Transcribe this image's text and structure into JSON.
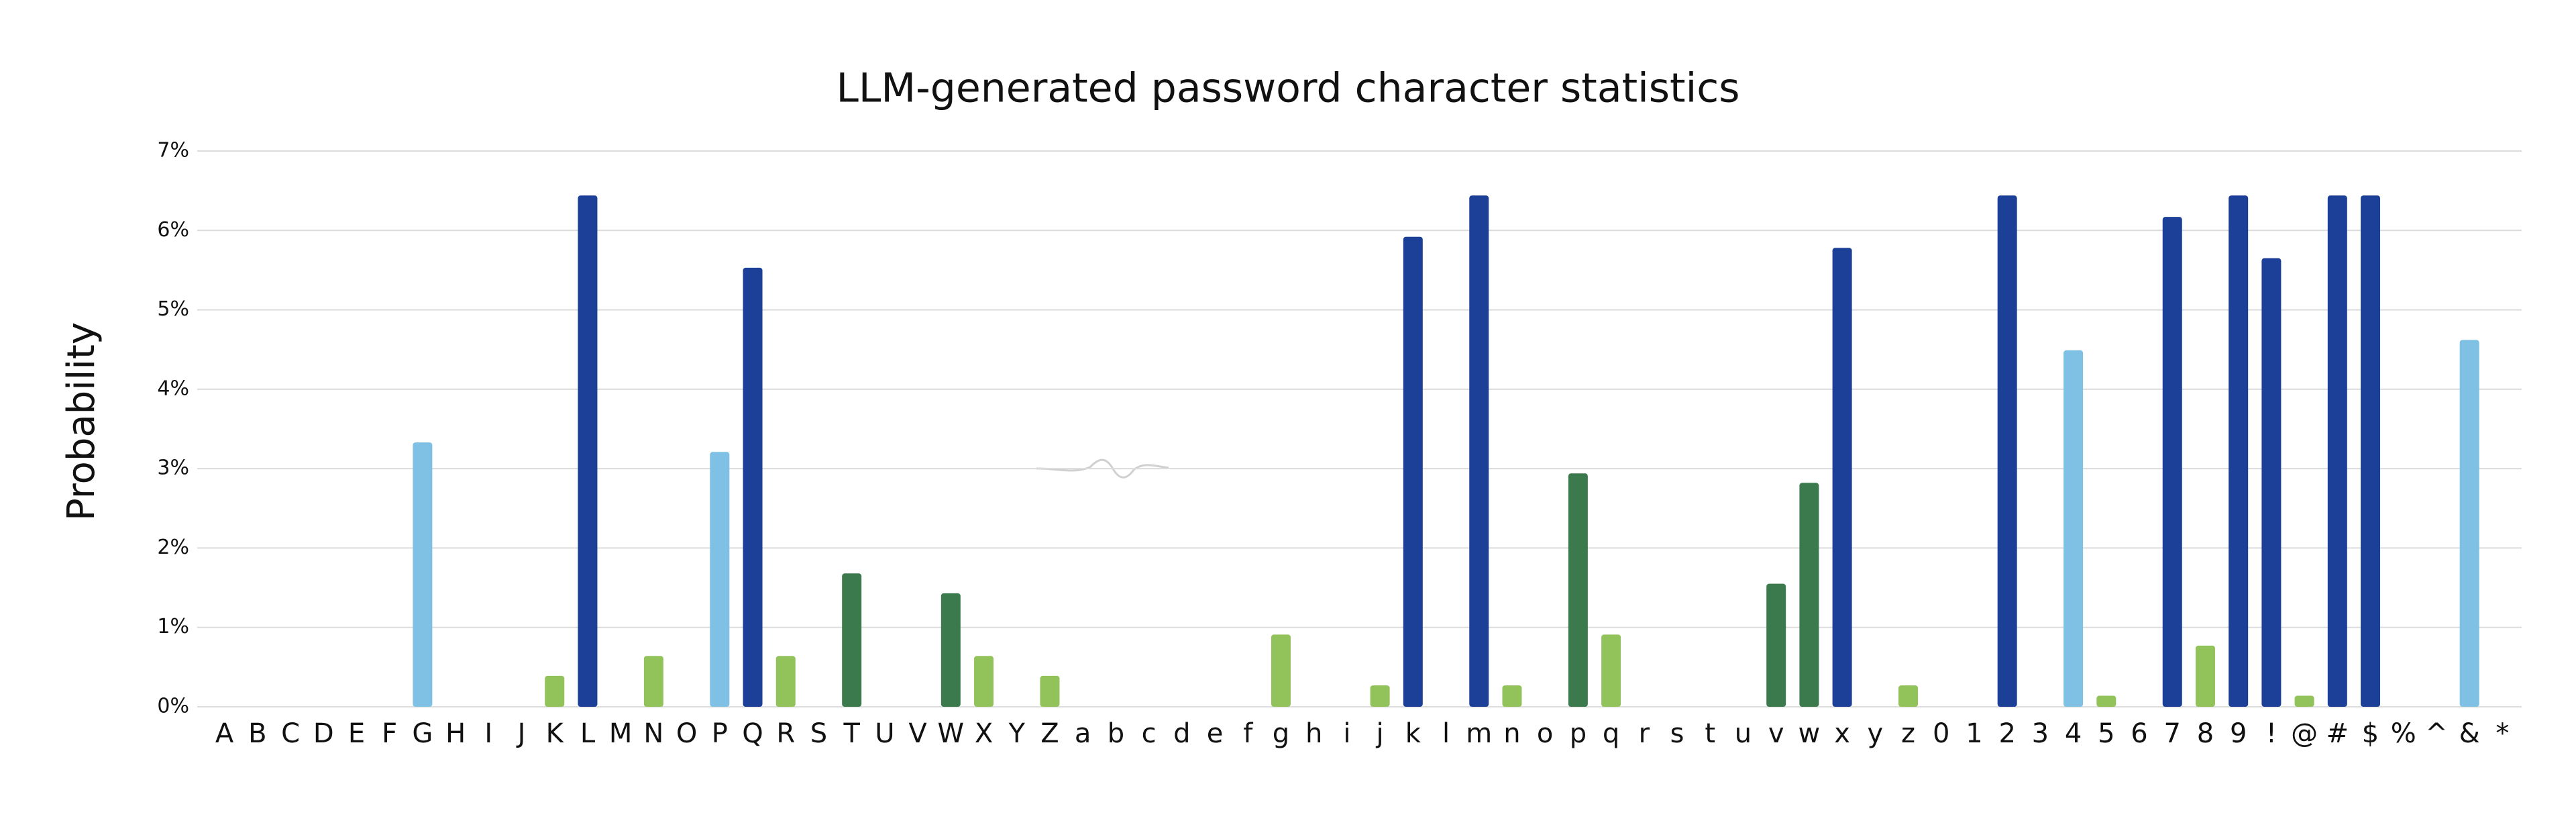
{
  "chart_data": {
    "type": "bar",
    "title": "LLM-generated password character statistics",
    "y_label": "Probability",
    "categories": [
      "A",
      "B",
      "C",
      "D",
      "E",
      "F",
      "G",
      "H",
      "I",
      "J",
      "K",
      "L",
      "M",
      "N",
      "O",
      "P",
      "Q",
      "R",
      "S",
      "T",
      "U",
      "V",
      "W",
      "X",
      "Y",
      "Z",
      "a",
      "b",
      "c",
      "d",
      "e",
      "f",
      "g",
      "h",
      "i",
      "j",
      "k",
      "l",
      "m",
      "n",
      "o",
      "p",
      "q",
      "r",
      "s",
      "t",
      "u",
      "v",
      "w",
      "x",
      "y",
      "z",
      "0",
      "1",
      "2",
      "3",
      "4",
      "5",
      "6",
      "7",
      "8",
      "9",
      "!",
      "@",
      "#",
      "$",
      "%",
      "^",
      "&",
      "*"
    ],
    "values": [
      0,
      0,
      0,
      0,
      0,
      0,
      3.33,
      0,
      0,
      0,
      0.39,
      6.44,
      0,
      0.64,
      0,
      3.21,
      5.53,
      0.64,
      0,
      1.68,
      0,
      0,
      1.43,
      0.64,
      0,
      0.39,
      0,
      0,
      0,
      0,
      0,
      0,
      0.91,
      0,
      0,
      0.27,
      5.92,
      0,
      6.44,
      0.27,
      0,
      2.94,
      0.91,
      0,
      0,
      0,
      0,
      1.55,
      2.82,
      5.78,
      0,
      0.27,
      0,
      0,
      6.44,
      0,
      4.49,
      0.14,
      0,
      6.17,
      0.77,
      6.44,
      5.65,
      0.14,
      6.44,
      6.44,
      0,
      0,
      4.62,
      0
    ],
    "colors": [
      null,
      null,
      null,
      null,
      null,
      null,
      "#7fc1e4",
      null,
      null,
      null,
      "#92c35a",
      "#1c3f98",
      null,
      "#92c35a",
      null,
      "#7fc1e4",
      "#1c3f98",
      "#92c35a",
      null,
      "#3a7a4c",
      null,
      null,
      "#3a7a4c",
      "#92c35a",
      null,
      "#92c35a",
      null,
      null,
      null,
      null,
      null,
      null,
      "#92c35a",
      null,
      null,
      "#92c35a",
      "#1c3f98",
      null,
      "#1c3f98",
      "#92c35a",
      null,
      "#3a7a4c",
      "#92c35a",
      null,
      null,
      null,
      null,
      "#3a7a4c",
      "#3a7a4c",
      "#1c3f98",
      null,
      "#92c35a",
      null,
      null,
      "#1c3f98",
      null,
      "#7fc1e4",
      "#92c35a",
      null,
      "#1c3f98",
      "#92c35a",
      "#1c3f98",
      "#1c3f98",
      "#92c35a",
      "#1c3f98",
      "#1c3f98",
      null,
      null,
      "#7fc1e4",
      null
    ],
    "ylim": [
      0,
      7
    ],
    "yticks": [
      {
        "value": 0,
        "label": "0%"
      },
      {
        "value": 1,
        "label": "1%"
      },
      {
        "value": 2,
        "label": "2%"
      },
      {
        "value": 3,
        "label": "3%"
      },
      {
        "value": 4,
        "label": "4%"
      },
      {
        "value": 5,
        "label": "5%"
      },
      {
        "value": 6,
        "label": "6%"
      },
      {
        "value": 7,
        "label": "7%"
      }
    ],
    "grid": true
  }
}
